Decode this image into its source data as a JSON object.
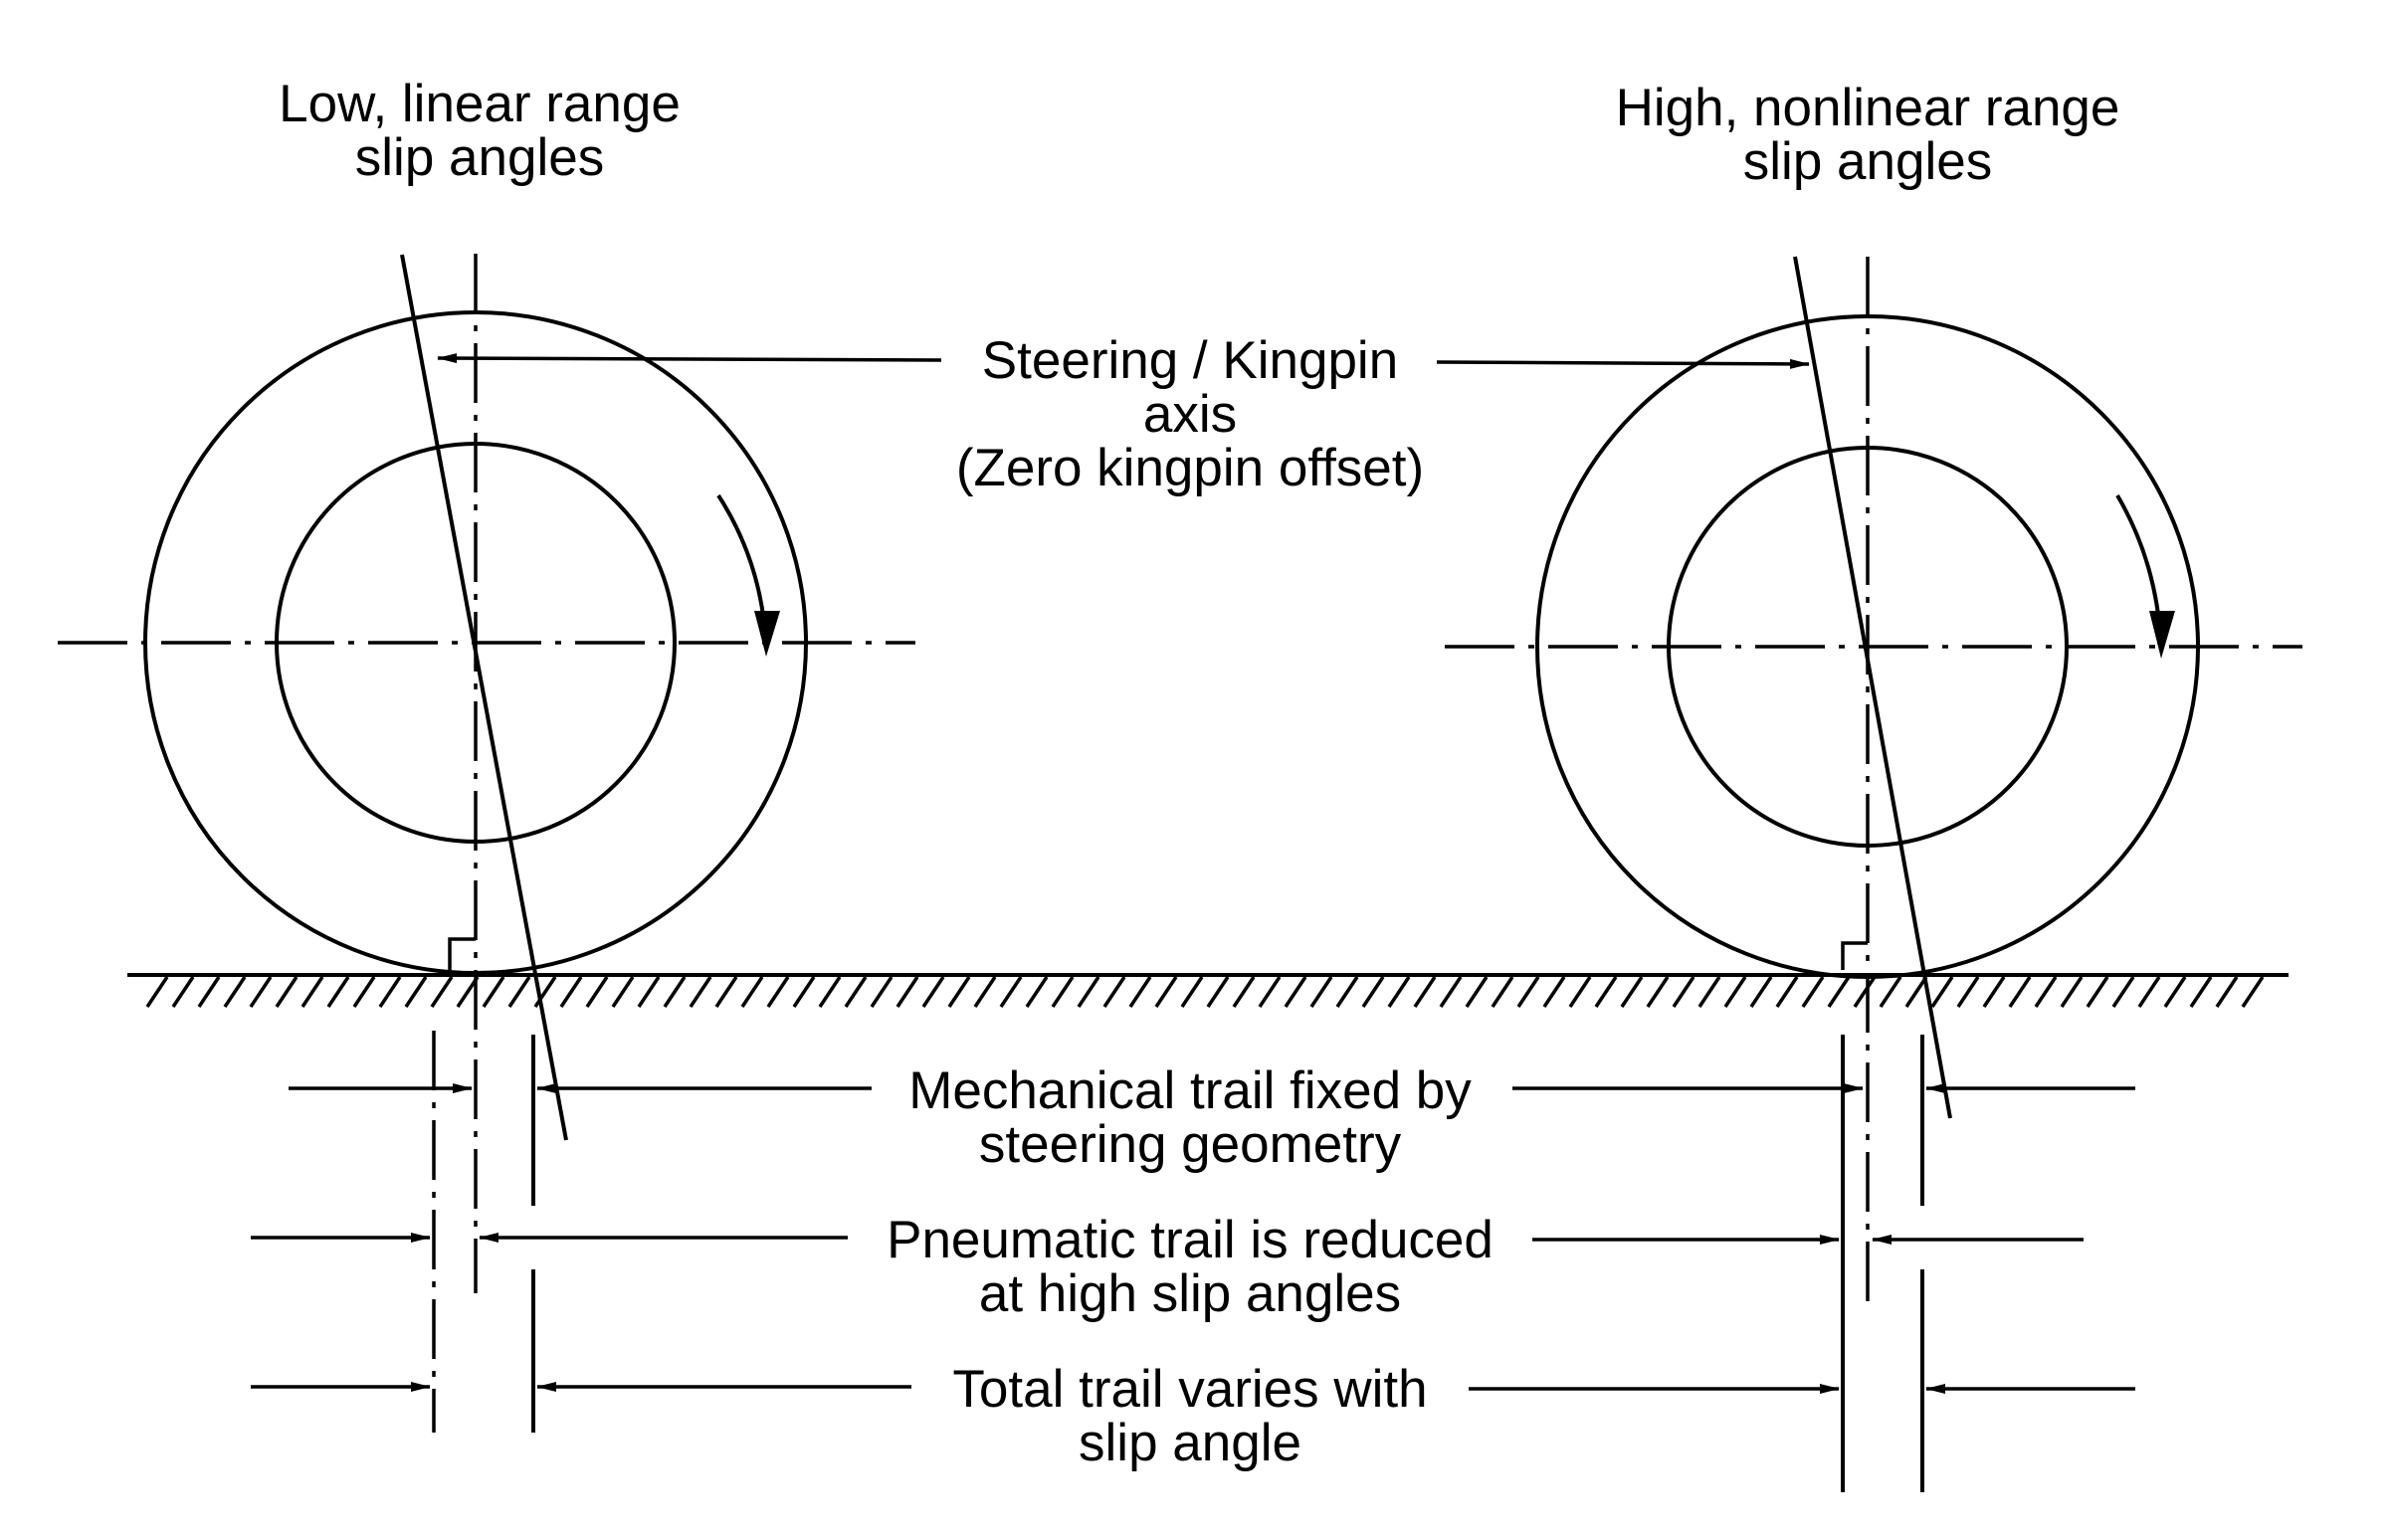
{
  "left_wheel": {
    "title_line1": "Low, linear range",
    "title_line2": "slip angles"
  },
  "right_wheel": {
    "title_line1": "High, nonlinear range",
    "title_line2": "slip angles"
  },
  "labels": {
    "steering_line1": "Steering / Kingpin",
    "steering_line2": "axis",
    "steering_line3": "(Zero kingpin offset)",
    "mechanical_line1": "Mechanical trail fixed by",
    "mechanical_line2": "steering geometry",
    "pneumatic_line1": "Pneumatic trail is reduced",
    "pneumatic_line2": "at high slip angles",
    "total_line1": "Total trail varies with",
    "total_line2": "slip angle"
  }
}
